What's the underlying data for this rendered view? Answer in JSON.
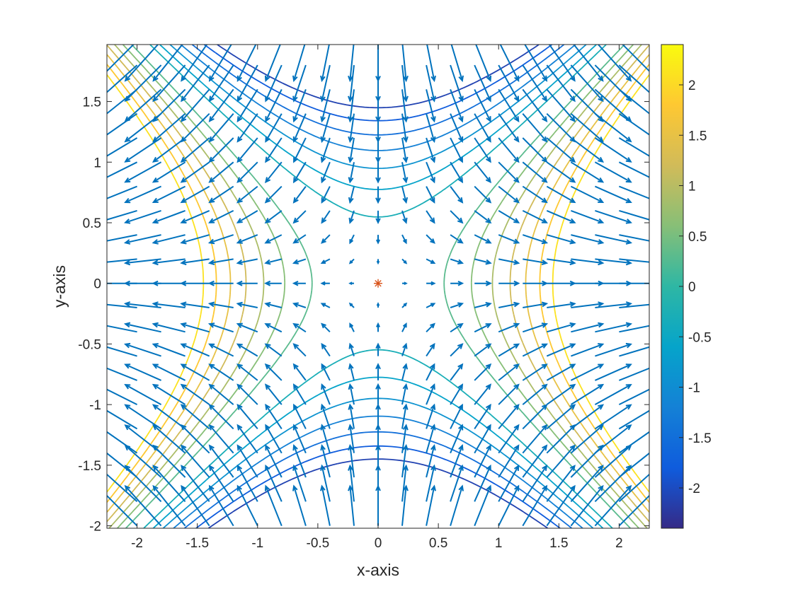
{
  "chart_data": {
    "type": "contour",
    "title": "",
    "xlabel": "x-axis",
    "ylabel": "y-axis",
    "xlim": [
      -2.25,
      2.25
    ],
    "ylim": [
      -2.02,
      1.97
    ],
    "x_ticks": [
      -2,
      -1.5,
      -1,
      -0.5,
      0,
      0.5,
      1,
      1.5,
      2
    ],
    "y_ticks": [
      -2,
      -1.5,
      -1,
      -0.5,
      0,
      0.5,
      1,
      1.5
    ],
    "x_tick_labels": [
      "-2",
      "-1.5",
      "-1",
      "-0.5",
      "0",
      "0.5",
      "1",
      "1.5",
      "2"
    ],
    "y_tick_labels": [
      "-2",
      "-1.5",
      "-1",
      "-0.5",
      "0",
      "0.5",
      "1",
      "1.5"
    ],
    "grid": false,
    "contour_levels": [
      -2.1,
      -1.8,
      -1.5,
      -1.2,
      -0.9,
      -0.6,
      -0.3,
      0.3,
      0.6,
      0.9,
      1.2,
      1.5,
      1.8,
      2.1
    ],
    "quiver": {
      "x_range": [
        -2,
        2
      ],
      "y_range": [
        -2,
        2
      ],
      "spacing": 0.2,
      "color": "#0072BD"
    },
    "critical_point": {
      "x": 0,
      "y": 0,
      "marker": "*",
      "color": "#D95319"
    },
    "colorbar": {
      "location": "right",
      "range": [
        -2.4,
        2.4
      ],
      "ticks": [
        -2,
        -1.5,
        -1,
        -0.5,
        0,
        0.5,
        1,
        1.5,
        2
      ],
      "tick_labels": [
        "-2",
        "-1.5",
        "-1",
        "-0.5",
        "0",
        "0.5",
        "1",
        "1.5",
        "2"
      ],
      "colormap": "parula"
    }
  }
}
